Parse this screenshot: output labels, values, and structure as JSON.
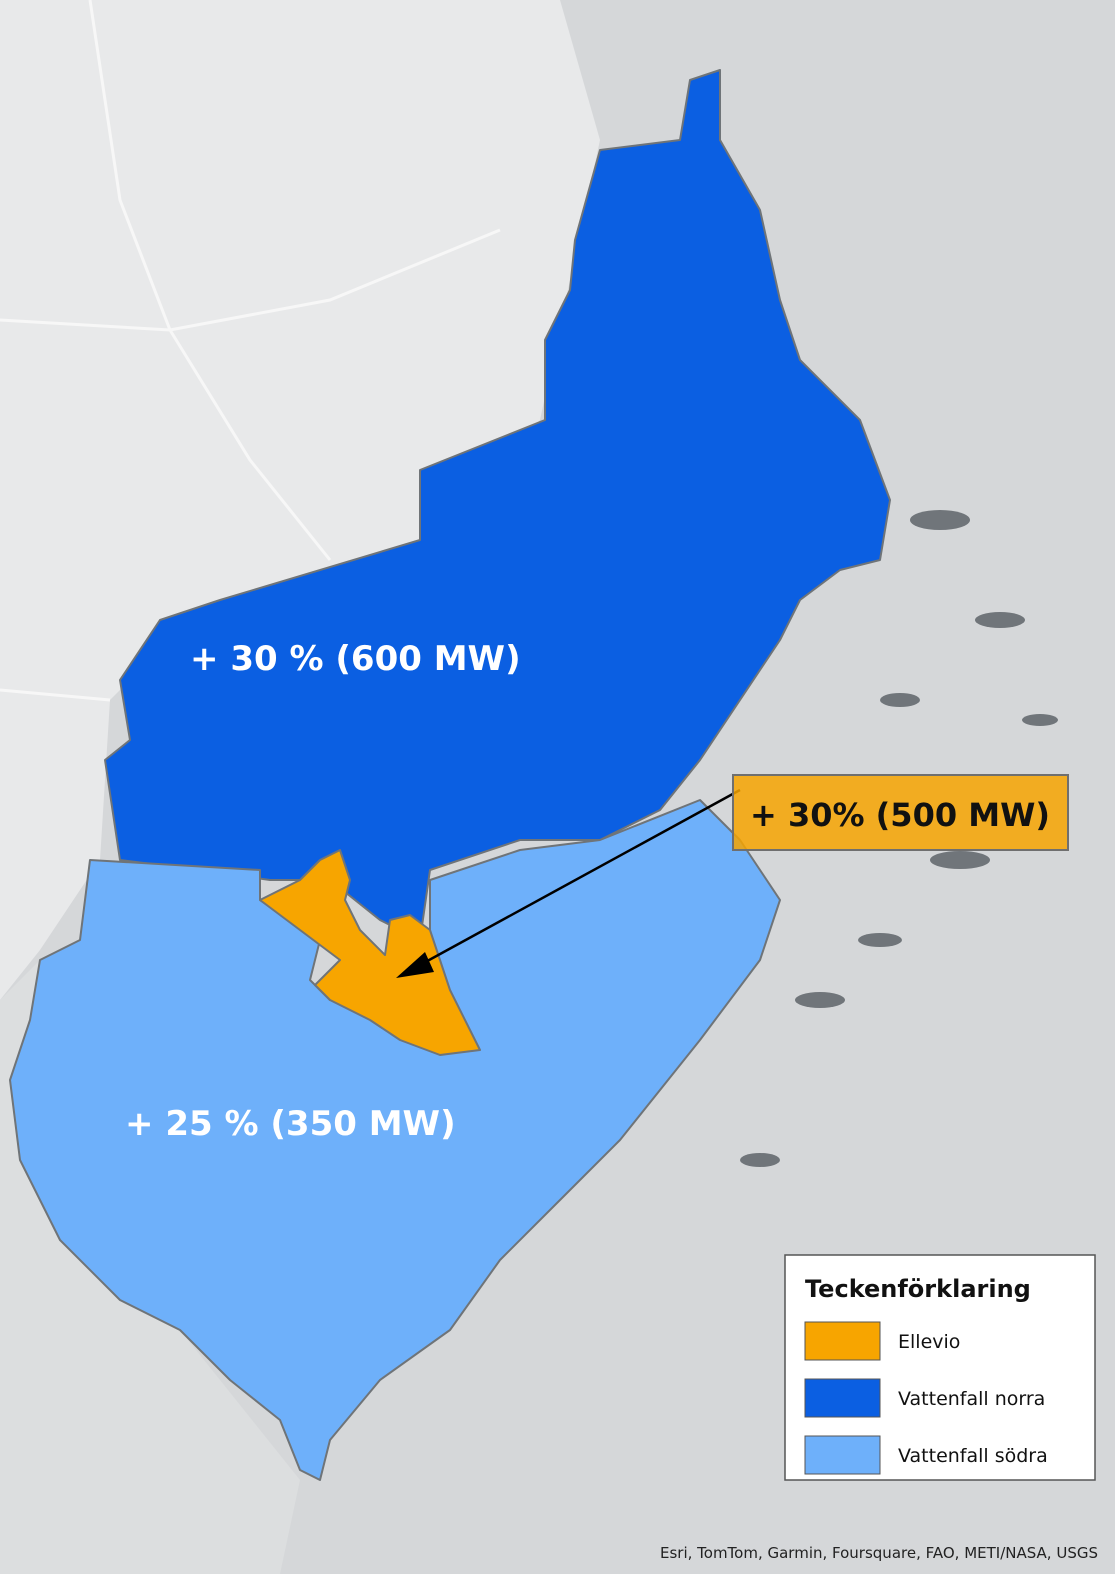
{
  "labels": {
    "north": "+ 30 % (600 MW)",
    "ellevio": "+ 30% (500 MW)",
    "south": "+ 25 % (350 MW)"
  },
  "legend": {
    "title": "Teckenförklaring",
    "items": [
      {
        "label": "Ellevio",
        "color": "#f7a500"
      },
      {
        "label": "Vattenfall norra",
        "color": "#0b5fe2"
      },
      {
        "label": "Vattenfall södra",
        "color": "#6eb0fa"
      }
    ]
  },
  "attribution": "Esri, TomTom, Garmin, Foursquare, FAO, METI/NASA, USGS"
}
